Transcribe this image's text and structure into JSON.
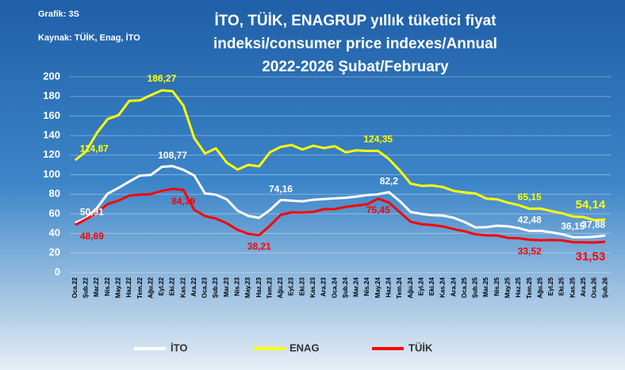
{
  "chart_data": {
    "type": "line",
    "title": [
      "İTO, TÜİK, ENAGRUP yıllık tüketici fiyat",
      "indeksi/consumer price indexes/Annual",
      "2022-2026 Şubat/February"
    ],
    "chart_id": "Grafik: 3S",
    "source": "Kaynak: TÜİK, Enag, İTO",
    "categories": [
      "Oca.22",
      "Şub.22",
      "Mar.22",
      "Nis.22",
      "May.22",
      "Haz.22",
      "Tem.22",
      "Ağu.22",
      "Eyl.22",
      "Eki.22",
      "Kas.22",
      "Ara.22",
      "Oca.23",
      "Şub.23",
      "Mar.23",
      "Nis.23",
      "May.23",
      "Haz.23",
      "Tem.23",
      "Ağu.23",
      "Eyl.23",
      "Eki.23",
      "Kas.23",
      "Ara.23",
      "Oca.24",
      "Şub.24",
      "Mar.24",
      "Nis.24",
      "May.24",
      "Haz.24",
      "Tem.24",
      "Ağu.24",
      "Eyl.24",
      "Eki.24",
      "Kas.24",
      "Ara.24",
      "Oca.25",
      "Şub.25",
      "Mar.25",
      "Nis.25",
      "May.25",
      "Haz.25",
      "Tem.25",
      "Ağu.25",
      "Eyl.25",
      "Eki.25",
      "Kas.25",
      "Ara.25",
      "Oca.26",
      "Şub.26"
    ],
    "ylim": [
      0,
      200
    ],
    "yticks": [
      0,
      20,
      40,
      60,
      80,
      100,
      120,
      140,
      160,
      180,
      200
    ],
    "grid": true,
    "legend": "bottom",
    "series": [
      {
        "name": "İTO",
        "color": "#ffffff",
        "values": [
          50.91,
          55.6,
          65.8,
          80.6,
          86.5,
          93.0,
          99.1,
          99.8,
          108.0,
          108.77,
          105.0,
          99.2,
          80.9,
          79.6,
          74.9,
          63.3,
          57.9,
          55.9,
          63.9,
          74.16,
          73.5,
          72.8,
          74.4,
          75.1,
          75.8,
          76.4,
          77.6,
          79.2,
          80.0,
          82.2,
          73.0,
          62.0,
          59.9,
          58.6,
          58.2,
          55.9,
          51.6,
          46.1,
          46.4,
          47.9,
          47.3,
          45.4,
          42.48,
          42.7,
          41.1,
          39.2,
          36.15,
          36.0,
          36.6,
          37.88
        ],
        "value_labels": [
          "50,91",
          null,
          null,
          null,
          null,
          null,
          null,
          null,
          null,
          "108,77",
          null,
          null,
          null,
          null,
          null,
          null,
          null,
          null,
          null,
          "74,16",
          null,
          null,
          null,
          null,
          null,
          null,
          null,
          null,
          null,
          "82,2",
          null,
          null,
          null,
          null,
          null,
          null,
          null,
          null,
          null,
          null,
          null,
          null,
          "42,48",
          null,
          null,
          null,
          "36,15",
          null,
          null,
          "37,88"
        ]
      },
      {
        "name": "ENAG",
        "color": "#ffff00",
        "values": [
          114.87,
          123.8,
          142.63,
          156.86,
          160.76,
          175.55,
          176.04,
          181.37,
          186.27,
          185.34,
          170.7,
          137.55,
          121.62,
          126.91,
          112.45,
          105.19,
          109.99,
          108.58,
          122.88,
          128.45,
          130.35,
          125.7,
          129.6,
          127.21,
          129.1,
          122.9,
          124.9,
          124.3,
          124.35,
          115.9,
          104.4,
          90.9,
          88.6,
          89.0,
          87.3,
          83.4,
          81.9,
          80.8,
          75.6,
          74.8,
          71.4,
          68.9,
          65.15,
          65.4,
          62.8,
          60.6,
          57.3,
          56.7,
          53.5,
          54.14
        ],
        "value_labels": [
          "114,87",
          null,
          null,
          null,
          null,
          null,
          null,
          null,
          "186,27",
          null,
          null,
          null,
          null,
          null,
          null,
          null,
          null,
          null,
          null,
          null,
          null,
          null,
          null,
          null,
          null,
          null,
          null,
          null,
          "124,35",
          null,
          null,
          null,
          null,
          null,
          null,
          null,
          null,
          null,
          null,
          null,
          null,
          null,
          "65,15",
          null,
          null,
          null,
          null,
          null,
          null,
          "54,14"
        ]
      },
      {
        "name": "TÜİK",
        "color": "#ff0000",
        "values": [
          48.69,
          54.44,
          61.14,
          69.97,
          73.5,
          78.62,
          79.6,
          80.21,
          83.45,
          85.51,
          84.39,
          64.27,
          57.68,
          55.18,
          50.51,
          43.68,
          39.59,
          38.21,
          47.83,
          58.94,
          61.53,
          61.36,
          61.98,
          64.77,
          64.86,
          67.07,
          68.5,
          69.8,
          75.45,
          71.6,
          61.78,
          51.97,
          49.38,
          48.58,
          47.09,
          44.38,
          42.12,
          39.05,
          38.1,
          37.86,
          35.41,
          35.05,
          33.52,
          32.95,
          33.29,
          32.87,
          31.07,
          30.89,
          30.65,
          31.53
        ],
        "value_labels": [
          "48,69",
          null,
          null,
          null,
          null,
          null,
          null,
          null,
          null,
          null,
          "84,39",
          null,
          null,
          null,
          null,
          null,
          null,
          "38,21",
          null,
          null,
          null,
          null,
          null,
          null,
          null,
          null,
          null,
          null,
          "75,45",
          null,
          null,
          null,
          null,
          null,
          null,
          null,
          null,
          null,
          null,
          null,
          null,
          null,
          "33,52",
          null,
          null,
          null,
          null,
          null,
          null,
          "31,53"
        ]
      }
    ]
  }
}
